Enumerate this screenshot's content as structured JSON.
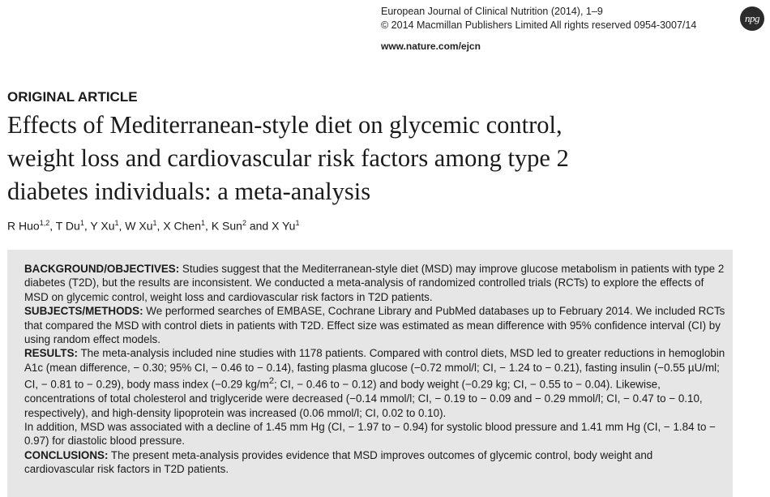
{
  "journal": {
    "line1": "European Journal of Clinical Nutrition (2014), 1–9",
    "line2": "© 2014 Macmillan Publishers Limited   All rights reserved 0954-3007/14",
    "url": "www.nature.com/ejcn",
    "logo_text": "npg"
  },
  "article": {
    "section_label": "ORIGINAL ARTICLE",
    "title_lines": [
      "Effects of Mediterranean-style diet on glycemic control,",
      "weight loss and cardiovascular risk factors among type 2",
      "diabetes individuals: a meta-analysis"
    ],
    "authors": [
      {
        "name": "R Huo",
        "aff": "1,2"
      },
      {
        "name": "T Du",
        "aff": "1"
      },
      {
        "name": "Y Xu",
        "aff": "1"
      },
      {
        "name": "W Xu",
        "aff": "1"
      },
      {
        "name": "X Chen",
        "aff": "1"
      },
      {
        "name": "K Sun",
        "aff": "2"
      },
      {
        "name": "X Yu",
        "aff": "1"
      }
    ],
    "author_separator": ", ",
    "author_last_separator": " and "
  },
  "abstract": {
    "background_label": "BACKGROUND/OBJECTIVES:",
    "background_text": " Studies suggest that the Mediterranean-style diet (MSD) may improve glucose metabolism in patients with type 2 diabetes (T2D), but the results are inconsistent. We conducted a meta-analysis of randomized controlled trials (RCTs) to explore the effects of MSD on glycemic control, weight loss and cardiovascular risk factors in T2D patients.",
    "methods_label": "SUBJECTS/METHODS:",
    "methods_text": " We performed searches of EMBASE, Cochrane Library and PubMed databases up to February 2014. We included RCTs that compared the MSD with control diets in patients with T2D. Effect size was estimated as mean difference with 95% confidence interval (CI) by using random effect models.",
    "results_label": "RESULTS:",
    "results_text_a": " The meta-analysis included nine studies with 1178 patients. Compared with control diets, MSD led to greater reductions in hemoglobin A1c (mean difference, − 0.30; 95% CI, − 0.46 to − 0.14), fasting plasma glucose (−0.72 mmol/l; CI, − 1.24 to − 0.21), fasting insulin (−0.55 µU/ml; CI, − 0.81 to − 0.29), body mass index (−0.29 kg/m",
    "results_sup": "2",
    "results_text_b": "; CI, − 0.46 to − 0.12) and body weight (−0.29 kg; CI, − 0.55 to − 0.04). Likewise, concentrations of total cholesterol and triglyceride were decreased (−0.14 mmol/l; CI, − 0.19 to − 0.09 and − 0.29 mmol/l; CI, − 0.47 to − 0.10, respectively), and high-density lipoprotein was increased (0.06 mmol/l; CI, 0.02 to 0.10).",
    "results_text_c": "In addition, MSD was associated with a decline of 1.45 mm Hg (CI, − 1.97 to − 0.94) for systolic blood pressure and 1.41 mm Hg (CI, − 1.84 to − 0.97) for diastolic blood pressure.",
    "conclusions_label": "CONCLUSIONS:",
    "conclusions_text": " The present meta-analysis provides evidence that MSD improves outcomes of glycemic control, body weight and cardiovascular risk factors in T2D patients."
  }
}
